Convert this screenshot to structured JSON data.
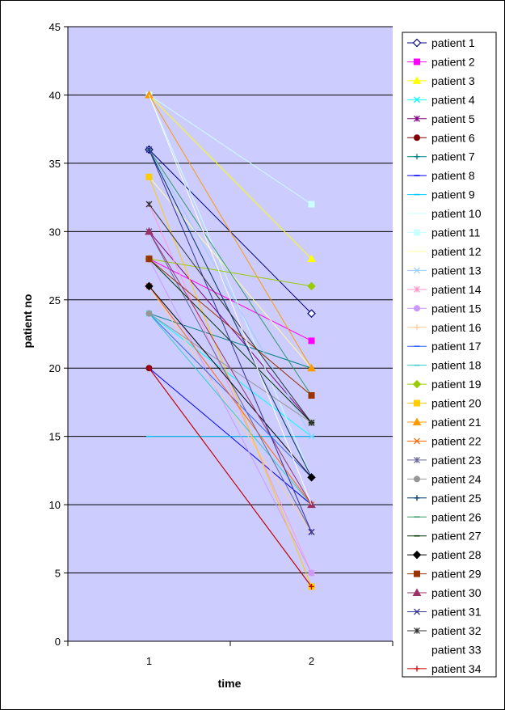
{
  "chart_data": {
    "type": "line",
    "title": "",
    "xlabel": "time",
    "ylabel": "patient no",
    "x": [
      1,
      2
    ],
    "x_ticks": [
      "1",
      "2"
    ],
    "ylim": [
      0,
      45
    ],
    "y_ticks": [
      "0",
      "5",
      "10",
      "15",
      "20",
      "25",
      "30",
      "35",
      "40",
      "45"
    ],
    "grid": true,
    "plot_background": "#ccccff",
    "legend_position": "right",
    "series": [
      {
        "name": "patient 1",
        "values": [
          36,
          24
        ],
        "color": "#000080",
        "marker": "diamond-open"
      },
      {
        "name": "patient 2",
        "values": [
          28,
          22
        ],
        "color": "#ff00ff",
        "marker": "square"
      },
      {
        "name": "patient 3",
        "values": [
          40,
          28
        ],
        "color": "#ffff00",
        "marker": "triangle"
      },
      {
        "name": "patient 4",
        "values": [
          24,
          15
        ],
        "color": "#00ffff",
        "marker": "x"
      },
      {
        "name": "patient 5",
        "values": [
          30,
          16
        ],
        "color": "#800080",
        "marker": "star"
      },
      {
        "name": "patient 6",
        "values": [
          20,
          4
        ],
        "color": "#800000",
        "marker": "circle"
      },
      {
        "name": "patient 7",
        "values": [
          24,
          20
        ],
        "color": "#008080",
        "marker": "plus"
      },
      {
        "name": "patient 8",
        "values": [
          20,
          10
        ],
        "color": "#0000ff",
        "marker": "dash"
      },
      {
        "name": "patient 9",
        "values": [
          15,
          15
        ],
        "color": "#00ccff",
        "marker": "dash"
      },
      {
        "name": "patient 10",
        "values": [
          40,
          12
        ],
        "color": "#ccffff",
        "marker": "none"
      },
      {
        "name": "patient 11",
        "values": [
          40,
          32
        ],
        "color": "#ccffff",
        "marker": "square"
      },
      {
        "name": "patient 12",
        "values": [
          34,
          20
        ],
        "color": "#ffff99",
        "marker": "none"
      },
      {
        "name": "patient 13",
        "values": [
          36,
          15
        ],
        "color": "#99ccff",
        "marker": "x"
      },
      {
        "name": "patient 14",
        "values": [
          32,
          5
        ],
        "color": "#ff99cc",
        "marker": "star"
      },
      {
        "name": "patient 15",
        "values": [
          28,
          5
        ],
        "color": "#cc99ff",
        "marker": "circle"
      },
      {
        "name": "patient 16",
        "values": [
          26,
          8
        ],
        "color": "#ffcc99",
        "marker": "plus"
      },
      {
        "name": "patient 17",
        "values": [
          24,
          12
        ],
        "color": "#3366ff",
        "marker": "dash"
      },
      {
        "name": "patient 18",
        "values": [
          24,
          10
        ],
        "color": "#33cccc",
        "marker": "dash"
      },
      {
        "name": "patient 19",
        "values": [
          28,
          26
        ],
        "color": "#99cc00",
        "marker": "diamond"
      },
      {
        "name": "patient 20",
        "values": [
          34,
          4
        ],
        "color": "#ffcc00",
        "marker": "square"
      },
      {
        "name": "patient 21",
        "values": [
          40,
          20
        ],
        "color": "#ff9900",
        "marker": "triangle"
      },
      {
        "name": "patient 22",
        "values": [
          26,
          10
        ],
        "color": "#ff6600",
        "marker": "x"
      },
      {
        "name": "patient 23",
        "values": [
          30,
          8
        ],
        "color": "#666699",
        "marker": "star"
      },
      {
        "name": "patient 24",
        "values": [
          24,
          16
        ],
        "color": "#969696",
        "marker": "circle"
      },
      {
        "name": "patient 25",
        "values": [
          36,
          12
        ],
        "color": "#003366",
        "marker": "plus"
      },
      {
        "name": "patient 26",
        "values": [
          36,
          18
        ],
        "color": "#339966",
        "marker": "dash"
      },
      {
        "name": "patient 27",
        "values": [
          28,
          16
        ],
        "color": "#003300",
        "marker": "dash"
      },
      {
        "name": "patient 28",
        "values": [
          26,
          12
        ],
        "color": "#000000",
        "marker": "diamond"
      },
      {
        "name": "patient 29",
        "values": [
          28,
          18
        ],
        "color": "#993300",
        "marker": "square"
      },
      {
        "name": "patient 30",
        "values": [
          30,
          10
        ],
        "color": "#993366",
        "marker": "triangle"
      },
      {
        "name": "patient 31",
        "values": [
          36,
          8
        ],
        "color": "#333399",
        "marker": "x"
      },
      {
        "name": "patient 32",
        "values": [
          32,
          16
        ],
        "color": "#333333",
        "marker": "star"
      },
      {
        "name": "patient 33",
        "values": [
          40,
          10
        ],
        "color": "#ffffff",
        "marker": "none"
      },
      {
        "name": "patient 34",
        "values": [
          20,
          4
        ],
        "color": "#cc0000",
        "marker": "plus"
      }
    ]
  }
}
